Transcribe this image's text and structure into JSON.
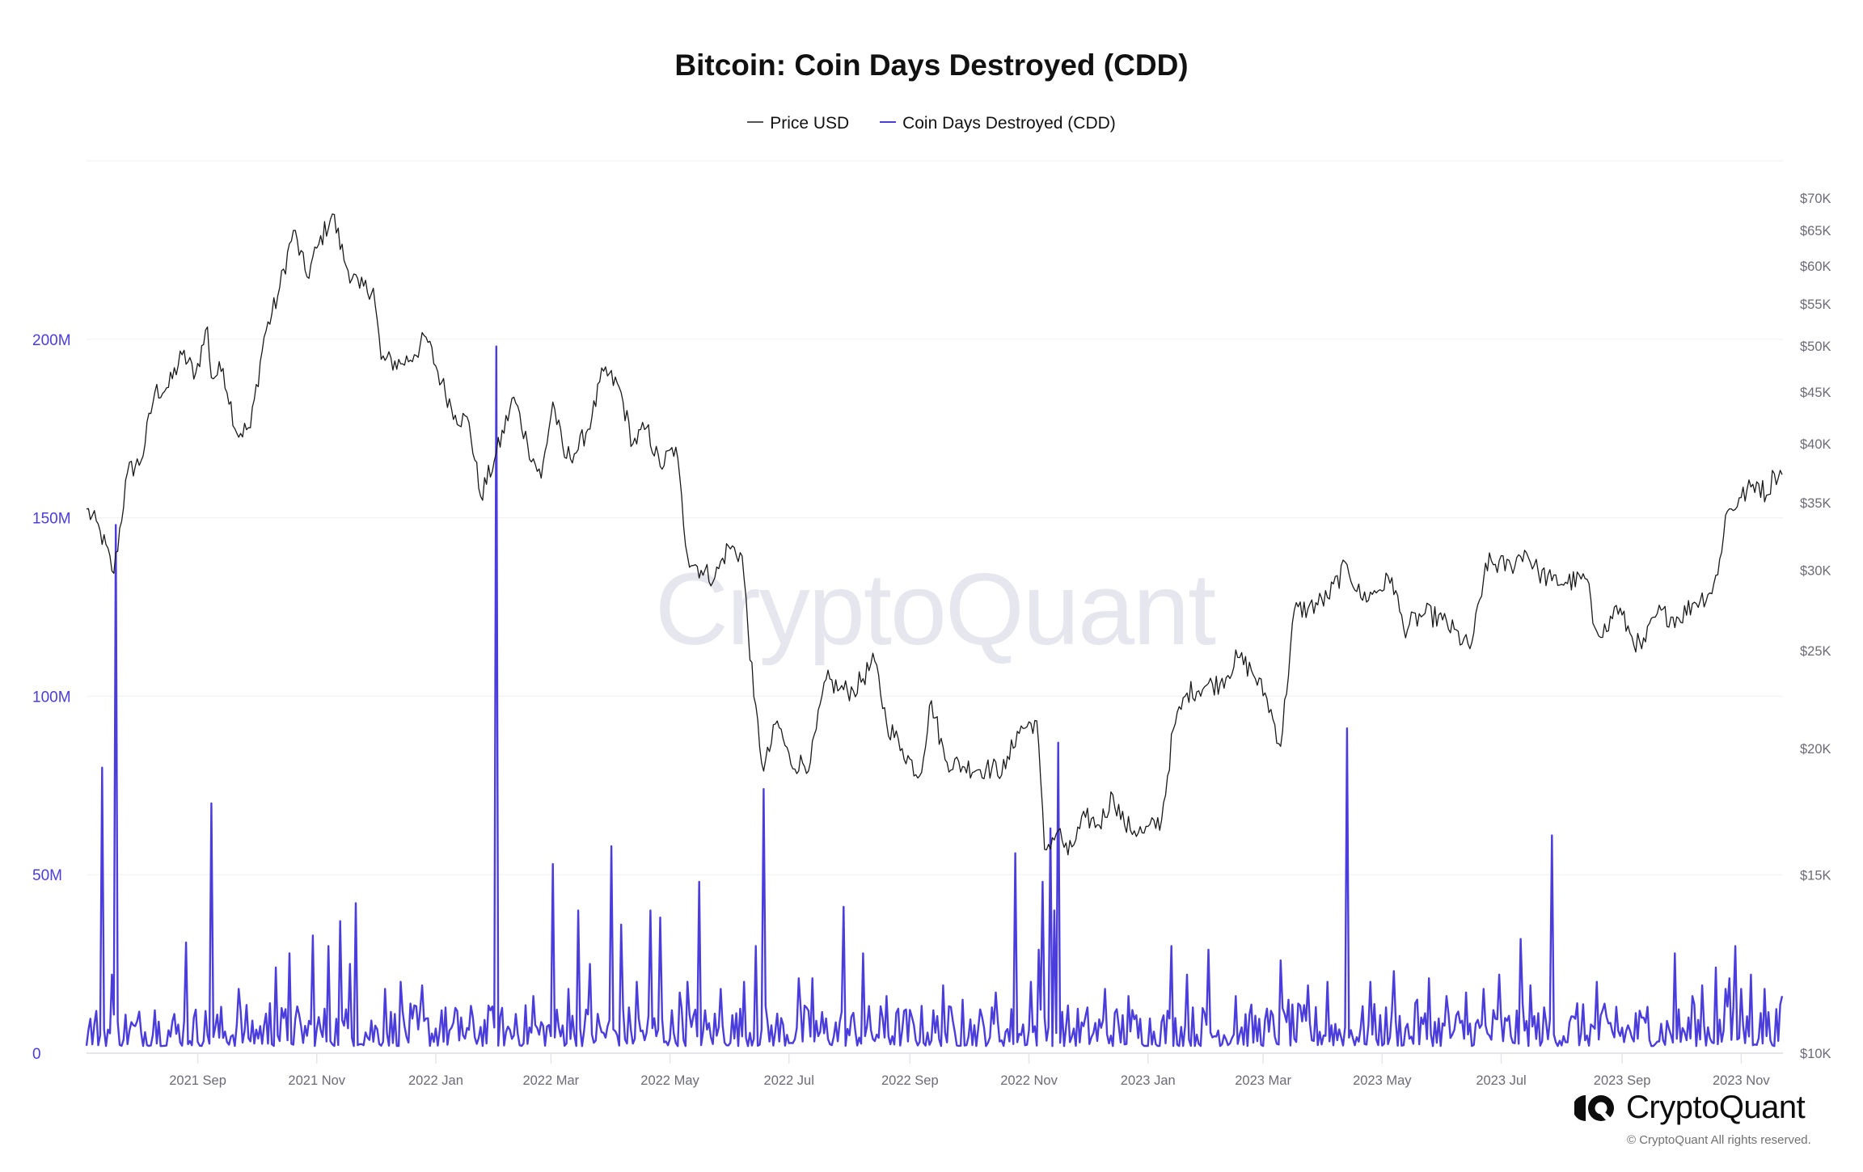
{
  "title": "Bitcoin: Coin Days Destroyed (CDD)",
  "legend": [
    {
      "label": "Price USD",
      "color": "#555555"
    },
    {
      "label": "Coin Days Destroyed (CDD)",
      "color": "#4a3ddc"
    }
  ],
  "watermark": "CryptoQuant",
  "brand": {
    "name": "CryptoQuant",
    "copyright": "© CryptoQuant All rights reserved."
  },
  "colors": {
    "cdd": "#4a3ddc",
    "price": "#1a1a1a",
    "left_axis": "#4a3ddc",
    "right_axis": "#6b6b78",
    "grid": "#f0f0f2",
    "watermark": "#e6e6ee"
  },
  "chart_data": {
    "type": "line",
    "title": "Bitcoin: Coin Days Destroyed (CDD)",
    "xlabel": "",
    "ylabel_left": "Coin Days Destroyed (CDD)",
    "ylabel_right": "Price USD",
    "x_range": [
      "2021-07-06",
      "2023-11-22"
    ],
    "x_ticks": [
      "2021 Sep",
      "2021 Nov",
      "2022 Jan",
      "2022 Mar",
      "2022 May",
      "2022 Jul",
      "2022 Sep",
      "2022 Nov",
      "2023 Jan",
      "2023 Mar",
      "2023 May",
      "2023 Jul",
      "2023 Sep",
      "2023 Nov"
    ],
    "y_left": {
      "ticks": [
        "0",
        "50M",
        "100M",
        "150M",
        "200M"
      ],
      "range": [
        0,
        250000000
      ],
      "scale": "linear"
    },
    "y_right": {
      "ticks": [
        "$10K",
        "$15K",
        "$20K",
        "$25K",
        "$30K",
        "$35K",
        "$40K",
        "$45K",
        "$50K",
        "$55K",
        "$60K",
        "$65K",
        "$70K"
      ],
      "range": [
        10000,
        72000
      ],
      "scale": "log"
    },
    "grid": true,
    "legend_position": "top",
    "series": [
      {
        "name": "Price USD",
        "axis": "right",
        "points": [
          [
            "2021-07-06",
            34500
          ],
          [
            "2021-07-13",
            32800
          ],
          [
            "2021-07-20",
            29800
          ],
          [
            "2021-07-27",
            37500
          ],
          [
            "2021-08-03",
            38500
          ],
          [
            "2021-08-10",
            45000
          ],
          [
            "2021-08-17",
            45500
          ],
          [
            "2021-08-24",
            49000
          ],
          [
            "2021-08-31",
            47000
          ],
          [
            "2021-09-06",
            52200
          ],
          [
            "2021-09-08",
            46500
          ],
          [
            "2021-09-14",
            47500
          ],
          [
            "2021-09-21",
            41000
          ],
          [
            "2021-09-28",
            41500
          ],
          [
            "2021-10-05",
            51000
          ],
          [
            "2021-10-12",
            56000
          ],
          [
            "2021-10-20",
            65000
          ],
          [
            "2021-10-27",
            58500
          ],
          [
            "2021-11-02",
            63000
          ],
          [
            "2021-11-09",
            67500
          ],
          [
            "2021-11-16",
            60000
          ],
          [
            "2021-11-23",
            57000
          ],
          [
            "2021-11-30",
            57000
          ],
          [
            "2021-12-04",
            48500
          ],
          [
            "2021-12-14",
            48000
          ],
          [
            "2021-12-21",
            49000
          ],
          [
            "2021-12-27",
            51000
          ],
          [
            "2022-01-04",
            46000
          ],
          [
            "2022-01-11",
            42700
          ],
          [
            "2022-01-18",
            42000
          ],
          [
            "2022-01-24",
            35500
          ],
          [
            "2022-01-31",
            38500
          ],
          [
            "2022-02-10",
            44500
          ],
          [
            "2022-02-17",
            40000
          ],
          [
            "2022-02-24",
            37000
          ],
          [
            "2022-03-02",
            44000
          ],
          [
            "2022-03-08",
            38800
          ],
          [
            "2022-03-15",
            39500
          ],
          [
            "2022-03-22",
            42500
          ],
          [
            "2022-03-28",
            47200
          ],
          [
            "2022-04-05",
            45500
          ],
          [
            "2022-04-12",
            40000
          ],
          [
            "2022-04-19",
            41500
          ],
          [
            "2022-04-26",
            38000
          ],
          [
            "2022-05-04",
            39700
          ],
          [
            "2022-05-10",
            31000
          ],
          [
            "2022-05-17",
            30000
          ],
          [
            "2022-05-24",
            29500
          ],
          [
            "2022-05-31",
            31700
          ],
          [
            "2022-06-07",
            31000
          ],
          [
            "2022-06-13",
            22500
          ],
          [
            "2022-06-18",
            19000
          ],
          [
            "2022-06-25",
            21300
          ],
          [
            "2022-07-02",
            19300
          ],
          [
            "2022-07-12",
            19400
          ],
          [
            "2022-07-20",
            23400
          ],
          [
            "2022-07-27",
            22900
          ],
          [
            "2022-08-03",
            22800
          ],
          [
            "2022-08-14",
            24400
          ],
          [
            "2022-08-20",
            21200
          ],
          [
            "2022-08-28",
            20000
          ],
          [
            "2022-09-06",
            18800
          ],
          [
            "2022-09-12",
            22300
          ],
          [
            "2022-09-19",
            19500
          ],
          [
            "2022-09-28",
            19200
          ],
          [
            "2022-10-10",
            19100
          ],
          [
            "2022-10-20",
            19100
          ],
          [
            "2022-10-26",
            20800
          ],
          [
            "2022-11-05",
            21300
          ],
          [
            "2022-11-09",
            15900
          ],
          [
            "2022-11-16",
            16600
          ],
          [
            "2022-11-21",
            15700
          ],
          [
            "2022-11-30",
            17100
          ],
          [
            "2022-12-07",
            16800
          ],
          [
            "2022-12-14",
            18000
          ],
          [
            "2022-12-20",
            16800
          ],
          [
            "2022-12-30",
            16500
          ],
          [
            "2023-01-08",
            17000
          ],
          [
            "2023-01-14",
            20900
          ],
          [
            "2023-01-21",
            22700
          ],
          [
            "2023-01-31",
            23100
          ],
          [
            "2023-02-07",
            23200
          ],
          [
            "2023-02-16",
            24600
          ],
          [
            "2023-02-23",
            23900
          ],
          [
            "2023-03-03",
            22400
          ],
          [
            "2023-03-10",
            20100
          ],
          [
            "2023-03-17",
            27400
          ],
          [
            "2023-03-24",
            27500
          ],
          [
            "2023-04-03",
            28200
          ],
          [
            "2023-04-13",
            30400
          ],
          [
            "2023-04-20",
            28200
          ],
          [
            "2023-04-26",
            28400
          ],
          [
            "2023-05-06",
            29500
          ],
          [
            "2023-05-12",
            26300
          ],
          [
            "2023-05-23",
            27200
          ],
          [
            "2023-06-01",
            26800
          ],
          [
            "2023-06-15",
            25100
          ],
          [
            "2023-06-21",
            28300
          ],
          [
            "2023-06-23",
            30500
          ],
          [
            "2023-07-06",
            30300
          ],
          [
            "2023-07-13",
            31400
          ],
          [
            "2023-07-20",
            29900
          ],
          [
            "2023-07-27",
            29300
          ],
          [
            "2023-08-03",
            29200
          ],
          [
            "2023-08-14",
            29400
          ],
          [
            "2023-08-17",
            26600
          ],
          [
            "2023-08-24",
            26100
          ],
          [
            "2023-08-29",
            27700
          ],
          [
            "2023-09-06",
            25800
          ],
          [
            "2023-09-11",
            25100
          ],
          [
            "2023-09-19",
            27200
          ],
          [
            "2023-09-30",
            26900
          ],
          [
            "2023-10-08",
            27900
          ],
          [
            "2023-10-16",
            28500
          ],
          [
            "2023-10-20",
            29700
          ],
          [
            "2023-10-24",
            34000
          ],
          [
            "2023-11-01",
            35400
          ],
          [
            "2023-11-09",
            36700
          ],
          [
            "2023-11-14",
            35600
          ],
          [
            "2023-11-18",
            37400
          ],
          [
            "2023-11-22",
            37300
          ]
        ]
      },
      {
        "name": "Coin Days Destroyed (CDD)",
        "axis": "left",
        "baseline_range": [
          2000000,
          14000000
        ],
        "spikes": [
          [
            "2021-07-14",
            80000000
          ],
          [
            "2021-07-19",
            22000000
          ],
          [
            "2021-07-21",
            148000000
          ],
          [
            "2021-08-10",
            12000000
          ],
          [
            "2021-08-26",
            31000000
          ],
          [
            "2021-09-08",
            70000000
          ],
          [
            "2021-09-22",
            18000000
          ],
          [
            "2021-10-08",
            14000000
          ],
          [
            "2021-10-11",
            24000000
          ],
          [
            "2021-10-18",
            28000000
          ],
          [
            "2021-10-30",
            33000000
          ],
          [
            "2021-11-07",
            30000000
          ],
          [
            "2021-11-13",
            37000000
          ],
          [
            "2021-11-18",
            25000000
          ],
          [
            "2021-11-21",
            42000000
          ],
          [
            "2021-12-06",
            18000000
          ],
          [
            "2021-12-14",
            20000000
          ],
          [
            "2021-12-25",
            19000000
          ],
          [
            "2022-01-04",
            12000000
          ],
          [
            "2022-01-14",
            10000000
          ],
          [
            "2022-01-29",
            12000000
          ],
          [
            "2022-02-01",
            198000000
          ],
          [
            "2022-02-11",
            11000000
          ],
          [
            "2022-02-20",
            16000000
          ],
          [
            "2022-03-02",
            53000000
          ],
          [
            "2022-03-10",
            18000000
          ],
          [
            "2022-03-15",
            40000000
          ],
          [
            "2022-03-21",
            25000000
          ],
          [
            "2022-04-01",
            58000000
          ],
          [
            "2022-04-06",
            36000000
          ],
          [
            "2022-04-14",
            20000000
          ],
          [
            "2022-04-21",
            40000000
          ],
          [
            "2022-04-26",
            38000000
          ],
          [
            "2022-05-06",
            17000000
          ],
          [
            "2022-05-10",
            20000000
          ],
          [
            "2022-05-16",
            48000000
          ],
          [
            "2022-05-27",
            18000000
          ],
          [
            "2022-06-08",
            20000000
          ],
          [
            "2022-06-14",
            30000000
          ],
          [
            "2022-06-18",
            74000000
          ],
          [
            "2022-07-06",
            21000000
          ],
          [
            "2022-07-13",
            21000000
          ],
          [
            "2022-07-29",
            41000000
          ],
          [
            "2022-08-08",
            28000000
          ],
          [
            "2022-08-20",
            16000000
          ],
          [
            "2022-09-18",
            19000000
          ],
          [
            "2022-09-28",
            15000000
          ],
          [
            "2022-10-15",
            17000000
          ],
          [
            "2022-10-25",
            56000000
          ],
          [
            "2022-11-02",
            20000000
          ],
          [
            "2022-11-06",
            29000000
          ],
          [
            "2022-11-08",
            48000000
          ],
          [
            "2022-11-12",
            63000000
          ],
          [
            "2022-11-14",
            40000000
          ],
          [
            "2022-11-16",
            87000000
          ],
          [
            "2022-12-10",
            18000000
          ],
          [
            "2022-12-22",
            16000000
          ],
          [
            "2023-01-13",
            30000000
          ],
          [
            "2023-01-21",
            22000000
          ],
          [
            "2023-02-01",
            29000000
          ],
          [
            "2023-02-15",
            16000000
          ],
          [
            "2023-03-10",
            26000000
          ],
          [
            "2023-03-14",
            15000000
          ],
          [
            "2023-03-24",
            19000000
          ],
          [
            "2023-04-03",
            20000000
          ],
          [
            "2023-04-13",
            91000000
          ],
          [
            "2023-04-25",
            20000000
          ],
          [
            "2023-05-07",
            23000000
          ],
          [
            "2023-05-19",
            15000000
          ],
          [
            "2023-05-25",
            21000000
          ],
          [
            "2023-06-03",
            16000000
          ],
          [
            "2023-06-13",
            17000000
          ],
          [
            "2023-06-22",
            18000000
          ],
          [
            "2023-06-30",
            22000000
          ],
          [
            "2023-07-11",
            32000000
          ],
          [
            "2023-07-16",
            19000000
          ],
          [
            "2023-07-27",
            61000000
          ],
          [
            "2023-08-09",
            14000000
          ],
          [
            "2023-08-19",
            20000000
          ],
          [
            "2023-08-29",
            13000000
          ],
          [
            "2023-09-14",
            13000000
          ],
          [
            "2023-09-28",
            28000000
          ],
          [
            "2023-10-07",
            16000000
          ],
          [
            "2023-10-12",
            19000000
          ],
          [
            "2023-10-19",
            24000000
          ],
          [
            "2023-10-24",
            18000000
          ],
          [
            "2023-10-26",
            21000000
          ],
          [
            "2023-10-29",
            30000000
          ],
          [
            "2023-11-01",
            18000000
          ],
          [
            "2023-11-06",
            22000000
          ],
          [
            "2023-11-13",
            18000000
          ],
          [
            "2023-11-22",
            16000000
          ]
        ]
      }
    ]
  }
}
